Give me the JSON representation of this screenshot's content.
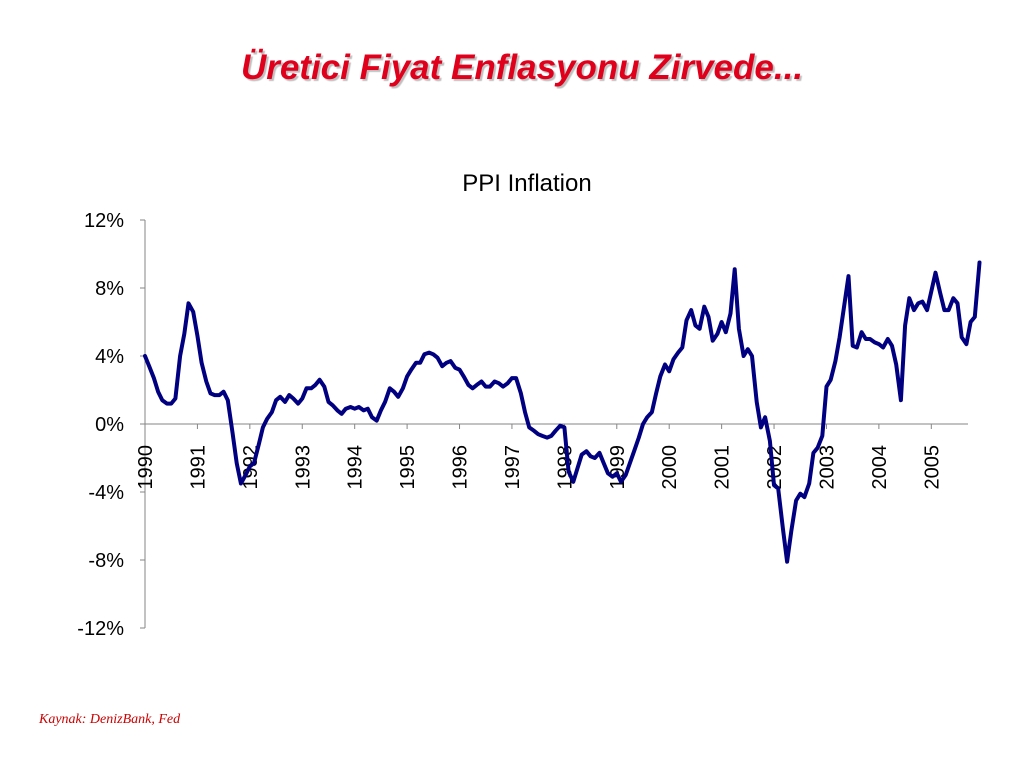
{
  "slide": {
    "title": "Üretici Fiyat Enflasyonu Zirvede...",
    "title_color": "#e0001b",
    "source": "Kaynak: DenizBank, Fed"
  },
  "chart_data": {
    "type": "line",
    "title": "PPI Inflation",
    "xlabel": "",
    "ylabel": "",
    "ylim": [
      -0.12,
      0.12
    ],
    "yticks": [
      0.12,
      0.08,
      0.04,
      0,
      -0.04,
      -0.08,
      -0.12
    ],
    "ytick_labels": [
      "12%",
      "8%",
      "4%",
      "0%",
      "-4%",
      "-8%",
      "-12%"
    ],
    "xlim": [
      1990.0,
      2005.7
    ],
    "xticks": [
      1990,
      1991,
      1992,
      1993,
      1994,
      1995,
      1996,
      1997,
      1998,
      1999,
      2000,
      2001,
      2002,
      2003,
      2004,
      2005
    ],
    "xtick_labels": [
      "1990",
      "1991",
      "1992",
      "1993",
      "1994",
      "1995",
      "1996",
      "1997",
      "1998",
      "1999",
      "2000",
      "2001",
      "2002",
      "2003",
      "2004",
      "2005"
    ],
    "grid": false,
    "legend": "none",
    "line_color": "#000080",
    "series": [
      {
        "points": [
          [
            1990.0,
            0.04
          ],
          [
            1990.08,
            0.034
          ],
          [
            1990.17,
            0.027
          ],
          [
            1990.25,
            0.019
          ],
          [
            1990.33,
            0.014
          ],
          [
            1990.42,
            0.012
          ],
          [
            1990.5,
            0.012
          ],
          [
            1990.58,
            0.015
          ],
          [
            1990.67,
            0.04
          ],
          [
            1990.75,
            0.053
          ],
          [
            1990.83,
            0.071
          ],
          [
            1990.92,
            0.066
          ],
          [
            1991.0,
            0.052
          ],
          [
            1991.08,
            0.036
          ],
          [
            1991.17,
            0.025
          ],
          [
            1991.25,
            0.018
          ],
          [
            1991.33,
            0.017
          ],
          [
            1991.42,
            0.017
          ],
          [
            1991.5,
            0.019
          ],
          [
            1991.58,
            0.014
          ],
          [
            1991.67,
            -0.005
          ],
          [
            1991.75,
            -0.023
          ],
          [
            1991.83,
            -0.035
          ],
          [
            1991.92,
            -0.03
          ],
          [
            1992.0,
            -0.025
          ],
          [
            1992.08,
            -0.023
          ],
          [
            1992.17,
            -0.012
          ],
          [
            1992.25,
            -0.002
          ],
          [
            1992.33,
            0.003
          ],
          [
            1992.42,
            0.007
          ],
          [
            1992.5,
            0.014
          ],
          [
            1992.58,
            0.016
          ],
          [
            1992.67,
            0.013
          ],
          [
            1992.75,
            0.017
          ],
          [
            1992.83,
            0.015
          ],
          [
            1992.92,
            0.012
          ],
          [
            1993.0,
            0.015
          ],
          [
            1993.08,
            0.021
          ],
          [
            1993.17,
            0.021
          ],
          [
            1993.25,
            0.023
          ],
          [
            1993.33,
            0.026
          ],
          [
            1993.42,
            0.022
          ],
          [
            1993.5,
            0.013
          ],
          [
            1993.58,
            0.011
          ],
          [
            1993.67,
            0.008
          ],
          [
            1993.75,
            0.006
          ],
          [
            1993.83,
            0.009
          ],
          [
            1993.92,
            0.01
          ],
          [
            1994.0,
            0.009
          ],
          [
            1994.08,
            0.01
          ],
          [
            1994.17,
            0.008
          ],
          [
            1994.25,
            0.009
          ],
          [
            1994.33,
            0.004
          ],
          [
            1994.42,
            0.002
          ],
          [
            1994.5,
            0.008
          ],
          [
            1994.58,
            0.013
          ],
          [
            1994.67,
            0.021
          ],
          [
            1994.75,
            0.019
          ],
          [
            1994.83,
            0.016
          ],
          [
            1994.92,
            0.021
          ],
          [
            1995.0,
            0.028
          ],
          [
            1995.08,
            0.032
          ],
          [
            1995.17,
            0.036
          ],
          [
            1995.25,
            0.036
          ],
          [
            1995.33,
            0.041
          ],
          [
            1995.42,
            0.042
          ],
          [
            1995.5,
            0.041
          ],
          [
            1995.58,
            0.039
          ],
          [
            1995.67,
            0.034
          ],
          [
            1995.75,
            0.036
          ],
          [
            1995.83,
            0.037
          ],
          [
            1995.92,
            0.033
          ],
          [
            1996.0,
            0.032
          ],
          [
            1996.08,
            0.028
          ],
          [
            1996.17,
            0.023
          ],
          [
            1996.25,
            0.021
          ],
          [
            1996.33,
            0.023
          ],
          [
            1996.42,
            0.025
          ],
          [
            1996.5,
            0.022
          ],
          [
            1996.58,
            0.022
          ],
          [
            1996.67,
            0.025
          ],
          [
            1996.75,
            0.024
          ],
          [
            1996.83,
            0.022
          ],
          [
            1996.92,
            0.024
          ],
          [
            1997.0,
            0.027
          ],
          [
            1997.08,
            0.027
          ],
          [
            1997.17,
            0.018
          ],
          [
            1997.25,
            0.007
          ],
          [
            1997.33,
            -0.002
          ],
          [
            1997.42,
            -0.004
          ],
          [
            1997.5,
            -0.006
          ],
          [
            1997.58,
            -0.007
          ],
          [
            1997.67,
            -0.008
          ],
          [
            1997.75,
            -0.007
          ],
          [
            1997.83,
            -0.004
          ],
          [
            1997.92,
            -0.001
          ],
          [
            1998.0,
            -0.002
          ],
          [
            1998.08,
            -0.028
          ],
          [
            1998.17,
            -0.034
          ],
          [
            1998.25,
            -0.026
          ],
          [
            1998.33,
            -0.018
          ],
          [
            1998.42,
            -0.016
          ],
          [
            1998.5,
            -0.019
          ],
          [
            1998.58,
            -0.02
          ],
          [
            1998.67,
            -0.017
          ],
          [
            1998.75,
            -0.023
          ],
          [
            1998.83,
            -0.029
          ],
          [
            1998.92,
            -0.031
          ],
          [
            1999.0,
            -0.029
          ],
          [
            1999.08,
            -0.034
          ],
          [
            1999.17,
            -0.03
          ],
          [
            1999.25,
            -0.023
          ],
          [
            1999.33,
            -0.016
          ],
          [
            1999.42,
            -0.008
          ],
          [
            1999.5,
            0.0
          ],
          [
            1999.58,
            0.004
          ],
          [
            1999.67,
            0.007
          ],
          [
            1999.75,
            0.018
          ],
          [
            1999.83,
            0.028
          ],
          [
            1999.92,
            0.035
          ],
          [
            2000.0,
            0.031
          ],
          [
            2000.08,
            0.038
          ],
          [
            2000.17,
            0.042
          ],
          [
            2000.25,
            0.045
          ],
          [
            2000.33,
            0.061
          ],
          [
            2000.42,
            0.067
          ],
          [
            2000.5,
            0.058
          ],
          [
            2000.58,
            0.056
          ],
          [
            2000.67,
            0.069
          ],
          [
            2000.75,
            0.063
          ],
          [
            2000.83,
            0.049
          ],
          [
            2000.92,
            0.053
          ],
          [
            2001.0,
            0.06
          ],
          [
            2001.08,
            0.054
          ],
          [
            2001.17,
            0.065
          ],
          [
            2001.25,
            0.091
          ],
          [
            2001.33,
            0.056
          ],
          [
            2001.42,
            0.04
          ],
          [
            2001.5,
            0.044
          ],
          [
            2001.58,
            0.04
          ],
          [
            2001.67,
            0.013
          ],
          [
            2001.75,
            -0.002
          ],
          [
            2001.83,
            0.004
          ],
          [
            2001.92,
            -0.01
          ],
          [
            2002.0,
            -0.036
          ],
          [
            2002.08,
            -0.038
          ],
          [
            2002.17,
            -0.062
          ],
          [
            2002.25,
            -0.081
          ],
          [
            2002.33,
            -0.063
          ],
          [
            2002.42,
            -0.045
          ],
          [
            2002.5,
            -0.041
          ],
          [
            2002.58,
            -0.043
          ],
          [
            2002.67,
            -0.035
          ],
          [
            2002.75,
            -0.017
          ],
          [
            2002.83,
            -0.014
          ],
          [
            2002.92,
            -0.007
          ],
          [
            2003.0,
            0.022
          ],
          [
            2003.08,
            0.026
          ],
          [
            2003.17,
            0.037
          ],
          [
            2003.25,
            0.051
          ],
          [
            2003.33,
            0.068
          ],
          [
            2003.42,
            0.087
          ],
          [
            2003.5,
            0.046
          ],
          [
            2003.58,
            0.045
          ],
          [
            2003.67,
            0.054
          ],
          [
            2003.75,
            0.05
          ],
          [
            2003.83,
            0.05
          ],
          [
            2003.92,
            0.048
          ],
          [
            2004.0,
            0.047
          ],
          [
            2004.08,
            0.045
          ],
          [
            2004.17,
            0.05
          ],
          [
            2004.25,
            0.046
          ],
          [
            2004.33,
            0.035
          ],
          [
            2004.42,
            0.014
          ],
          [
            2004.5,
            0.058
          ],
          [
            2004.58,
            0.074
          ],
          [
            2004.67,
            0.067
          ],
          [
            2004.75,
            0.071
          ],
          [
            2004.83,
            0.072
          ],
          [
            2004.92,
            0.067
          ],
          [
            2005.0,
            0.078
          ],
          [
            2005.08,
            0.089
          ],
          [
            2005.17,
            0.077
          ],
          [
            2005.25,
            0.067
          ],
          [
            2005.33,
            0.067
          ],
          [
            2005.42,
            0.074
          ],
          [
            2005.5,
            0.071
          ],
          [
            2005.58,
            0.051
          ],
          [
            2005.67,
            0.047
          ],
          [
            2005.75,
            0.06
          ],
          [
            2005.83,
            0.063
          ],
          [
            2005.92,
            0.095
          ]
        ]
      }
    ]
  }
}
